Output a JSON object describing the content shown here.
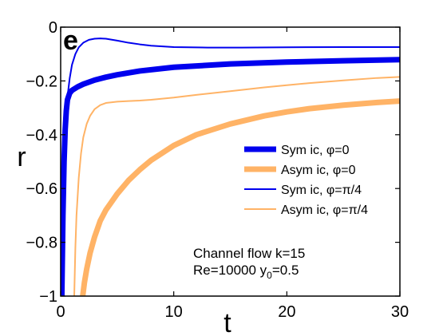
{
  "chart_data": {
    "type": "line",
    "panel_label": "e",
    "xlabel": "t",
    "ylabel": "r",
    "xlim": [
      0,
      30
    ],
    "ylim": [
      -1,
      0
    ],
    "xticks": [
      0,
      10,
      20,
      30
    ],
    "yticks": [
      0,
      -0.2,
      -0.4,
      -0.6,
      -0.8,
      -1
    ],
    "xtick_labels": [
      "0",
      "10",
      "20",
      "30"
    ],
    "ytick_labels": [
      "0",
      "−0.2",
      "−0.4",
      "−0.6",
      "−0.8",
      "−1"
    ],
    "grid": false,
    "legend_position": "right",
    "annotation": {
      "line1": "Channel flow k=15",
      "line2_main": "Re=10000 y",
      "line2_sub": "0",
      "line2_tail": "=0.5"
    },
    "series": [
      {
        "name": "Sym ic, φ=0",
        "color": "#0000ee",
        "width": 7,
        "x": [
          0.1,
          0.15,
          0.2,
          0.3,
          0.4,
          0.5,
          0.6,
          0.8,
          1.0,
          1.5,
          2,
          3,
          4,
          5,
          7,
          10,
          15,
          20,
          25,
          30
        ],
        "y": [
          -1.0,
          -0.85,
          -0.7,
          -0.5,
          -0.38,
          -0.31,
          -0.27,
          -0.245,
          -0.235,
          -0.222,
          -0.212,
          -0.197,
          -0.186,
          -0.177,
          -0.163,
          -0.149,
          -0.137,
          -0.13,
          -0.125,
          -0.121
        ]
      },
      {
        "name": "Asym ic, φ=0",
        "color": "#ffb366",
        "width": 7,
        "x": [
          1.95,
          2.1,
          2.3,
          2.6,
          3,
          3.5,
          4,
          5,
          6,
          7,
          8,
          10,
          12,
          15,
          18,
          20,
          22,
          25,
          28,
          30
        ],
        "y": [
          -1.0,
          -0.95,
          -0.9,
          -0.84,
          -0.78,
          -0.72,
          -0.68,
          -0.62,
          -0.57,
          -0.53,
          -0.495,
          -0.44,
          -0.4,
          -0.36,
          -0.33,
          -0.315,
          -0.303,
          -0.29,
          -0.28,
          -0.275
        ]
      },
      {
        "name": "Sym ic, φ=π/4",
        "color": "#0000ee",
        "width": 2,
        "x": [
          0.2,
          0.3,
          0.4,
          0.5,
          0.6,
          0.8,
          1.0,
          1.3,
          1.6,
          2.0,
          2.5,
          3.0,
          3.5,
          4.0,
          5.0,
          6.0,
          7.0,
          8.0,
          10,
          13,
          16,
          20,
          25,
          30
        ],
        "y": [
          -1.0,
          -0.62,
          -0.44,
          -0.33,
          -0.26,
          -0.19,
          -0.14,
          -0.1,
          -0.075,
          -0.058,
          -0.047,
          -0.043,
          -0.042,
          -0.043,
          -0.05,
          -0.058,
          -0.064,
          -0.069,
          -0.074,
          -0.076,
          -0.076,
          -0.075,
          -0.074,
          -0.074
        ]
      },
      {
        "name": "Asym ic, φ=π/4",
        "color": "#ffb366",
        "width": 2,
        "x": [
          1.2,
          1.3,
          1.4,
          1.6,
          1.8,
          2.0,
          2.3,
          2.6,
          3.0,
          3.5,
          4.0,
          5.0,
          6.0,
          7.0,
          8.0,
          10,
          12,
          15,
          18,
          20,
          22,
          25,
          28,
          30
        ],
        "y": [
          -1.0,
          -0.82,
          -0.7,
          -0.56,
          -0.47,
          -0.41,
          -0.36,
          -0.33,
          -0.305,
          -0.29,
          -0.282,
          -0.277,
          -0.275,
          -0.273,
          -0.27,
          -0.262,
          -0.252,
          -0.238,
          -0.224,
          -0.216,
          -0.208,
          -0.198,
          -0.189,
          -0.185
        ]
      }
    ]
  }
}
